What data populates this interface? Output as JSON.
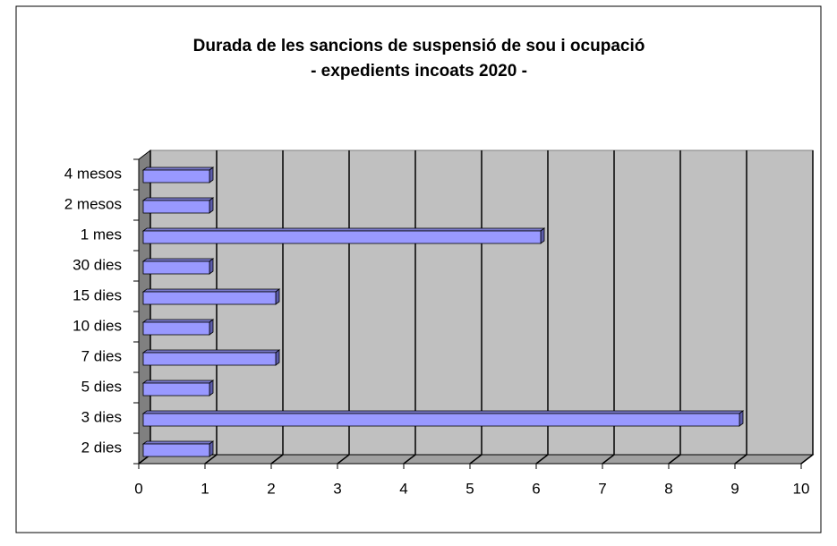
{
  "chart_data": {
    "type": "bar",
    "orientation": "horizontal",
    "title": [
      "Durada de les sancions de suspensió de sou i ocupació",
      "- expedients incoats 2020 -"
    ],
    "categories": [
      "2 dies",
      "3 dies",
      "5 dies",
      "7 dies",
      "10 dies",
      "15 dies",
      "30 dies",
      "1 mes",
      "2 mesos",
      "4 mesos"
    ],
    "values": [
      1,
      9,
      1,
      2,
      1,
      2,
      1,
      6,
      1,
      1
    ],
    "color": "#9999ff",
    "xlim": [
      0,
      10
    ],
    "xticks": [
      0,
      1,
      2,
      3,
      4,
      5,
      6,
      7,
      8,
      9,
      10
    ],
    "grid": true
  }
}
